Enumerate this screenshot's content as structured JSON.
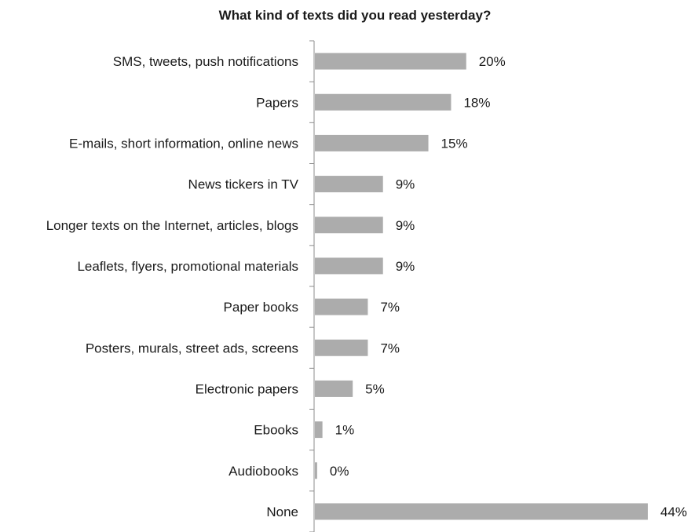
{
  "chart_data": {
    "type": "bar",
    "orientation": "horizontal",
    "title": "What kind of texts did you read yesterday?",
    "categories": [
      "SMS, tweets, push notifications",
      "Papers",
      "E-mails, short information, online news",
      "News tickers in TV",
      "Longer texts on the Internet, articles, blogs",
      "Leaflets, flyers, promotional materials",
      "Paper books",
      "Posters, murals, street ads, screens",
      "Electronic papers",
      "Ebooks",
      "Audiobooks",
      "None"
    ],
    "values": [
      20,
      18,
      15,
      9,
      9,
      9,
      7,
      7,
      5,
      1,
      0.3,
      44
    ],
    "data_labels": [
      "20%",
      "18%",
      "15%",
      "9%",
      "9%",
      "9%",
      "7%",
      "7%",
      "5%",
      "1%",
      "0%",
      "44%"
    ],
    "xlim": [
      0,
      45
    ],
    "grid": false,
    "bar_color": "#acacac",
    "axis_color": "#8c8c8c"
  }
}
